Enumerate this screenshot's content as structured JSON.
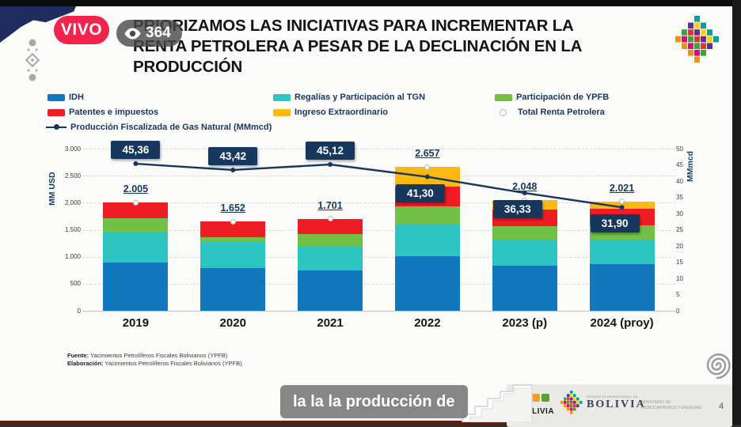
{
  "frame": {
    "live_badge": "VIVO",
    "viewer_count": "364",
    "caption": "la la la producción de",
    "page_number": "4"
  },
  "slide": {
    "title_lines": [
      "PRIORIZAMOS LAS INICIATIVAS PARA INCREMENTAR LA",
      "RENTA PETROLERA A PESAR DE LA DECLINACIÓN EN LA",
      "PRODUCCIÓN"
    ],
    "source_label": "Fuente:",
    "source_text": " Yacimientos Petrolíferos Fiscales Bolivianos (YPFB)",
    "elaboration_label": "Elaboración:",
    "elaboration_text": " Yacimientos Petrolíferos Fiscales Bolivianos (YPFB).",
    "footer": {
      "logo1_text": "BOLIVIA",
      "logo2_small": "ESTADO PLURINACIONAL DE",
      "logo2_text": "BOLIVIA",
      "ministry_line1": "MINISTERIO DE",
      "ministry_line2": "HIDROCARBUROS Y ENERGÍAS"
    }
  },
  "chart_data": {
    "type": "bar",
    "subtype": "stacked-bars-with-line",
    "categories": [
      "2019",
      "2020",
      "2021",
      "2022",
      "2023 (p)",
      "2024 (proy)"
    ],
    "series": [
      {
        "name": "IDH",
        "color": "#1377bd",
        "values": [
          900,
          790,
          746,
          1014,
          829,
          867
        ]
      },
      {
        "name": "Regalías y Participación al TGN",
        "color": "#2cc5c1",
        "values": [
          548,
          500,
          449,
          595,
          488,
          450
        ]
      },
      {
        "name": "Participación de YPFB",
        "color": "#72c045",
        "values": [
          268,
          75,
          219,
          326,
          244,
          258
        ]
      },
      {
        "name": "Patentes e impuestos",
        "color": "#ee1c24",
        "values": [
          289,
          287,
          287,
          357,
          307,
          312
        ]
      },
      {
        "name": "Ingreso Extraordinario",
        "color": "#fdb813",
        "values": [
          0,
          0,
          0,
          365,
          180,
          134
        ]
      }
    ],
    "totals": [
      "2.005",
      "1.652",
      "1.701",
      "2.657",
      "2.048",
      "2.021"
    ],
    "totals_numeric": [
      2005,
      1652,
      1701,
      2657,
      2048,
      2021
    ],
    "total_marker_name": "Total Renta Petrolera",
    "line_series": {
      "name": "Producción Fiscalizada de Gas Natural (MMmcd)",
      "color": "#17375e",
      "values": [
        45.36,
        43.42,
        45.12,
        41.3,
        36.33,
        31.9
      ],
      "labels": [
        "45,36",
        "43,42",
        "45,12",
        "41,30",
        "36,33",
        "31,90"
      ]
    },
    "ylabel_left": "MM USD",
    "ylabel_right": "MMmcd",
    "y_left": {
      "min": 0,
      "max": 3000,
      "step": 500,
      "tick_labels": [
        "0",
        "500",
        "1.000",
        "1.500",
        "2.000",
        "2.500",
        "3.000"
      ]
    },
    "y_right": {
      "min": 0,
      "max": 50,
      "step": 5
    },
    "grid": "dashed-horizontal",
    "legend_position": "top"
  }
}
